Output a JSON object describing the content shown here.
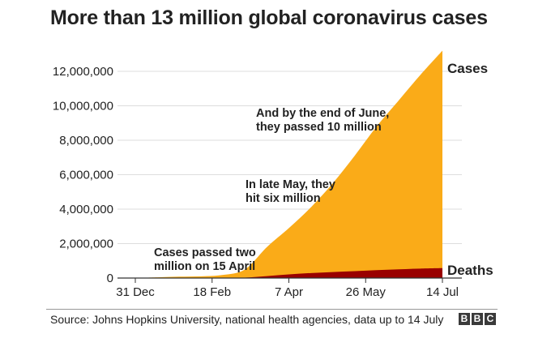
{
  "chart_data": {
    "type": "area",
    "title": "More than 13 million global coronavirus cases",
    "x_tick_labels": [
      "31 Dec",
      "18 Feb",
      "7 Apr",
      "26 May",
      "14 Jul"
    ],
    "x_days": [
      0,
      14,
      28,
      42,
      56,
      70,
      84,
      98,
      112,
      126,
      140,
      154,
      168,
      182,
      196
    ],
    "series": [
      {
        "name": "Cases",
        "color": "#faab18",
        "values": [
          0,
          40000,
          80000,
          100000,
          180000,
          500000,
          1800000,
          2900000,
          4100000,
          5500000,
          7100000,
          8800000,
          10300000,
          11800000,
          13200000
        ]
      },
      {
        "name": "Deaths",
        "color": "#990000",
        "values": [
          0,
          1000,
          2700,
          3500,
          7000,
          25000,
          110000,
          210000,
          290000,
          350000,
          400000,
          460000,
          505000,
          550000,
          575000
        ]
      }
    ],
    "ylim": [
      0,
      13500000
    ],
    "y_ticks": [
      0,
      2000000,
      4000000,
      6000000,
      8000000,
      10000000,
      12000000
    ],
    "y_tick_labels": [
      "0",
      "2,000,000",
      "4,000,000",
      "6,000,000",
      "8,000,000",
      "10,000,000",
      "12,000,000"
    ],
    "annotations": [
      {
        "lines": [
          "Cases passed two",
          "million on 15 April"
        ]
      },
      {
        "lines": [
          "In late May, they",
          "hit six million"
        ]
      },
      {
        "lines": [
          "And by the end of June,",
          "they passed 10 million"
        ]
      }
    ],
    "grid": true,
    "series_labels": [
      "Cases",
      "Deaths"
    ]
  },
  "footer": {
    "source": "Source: Johns Hopkins University, national health agencies, data up to 14 July",
    "logo_letters": [
      "B",
      "B",
      "C"
    ]
  }
}
